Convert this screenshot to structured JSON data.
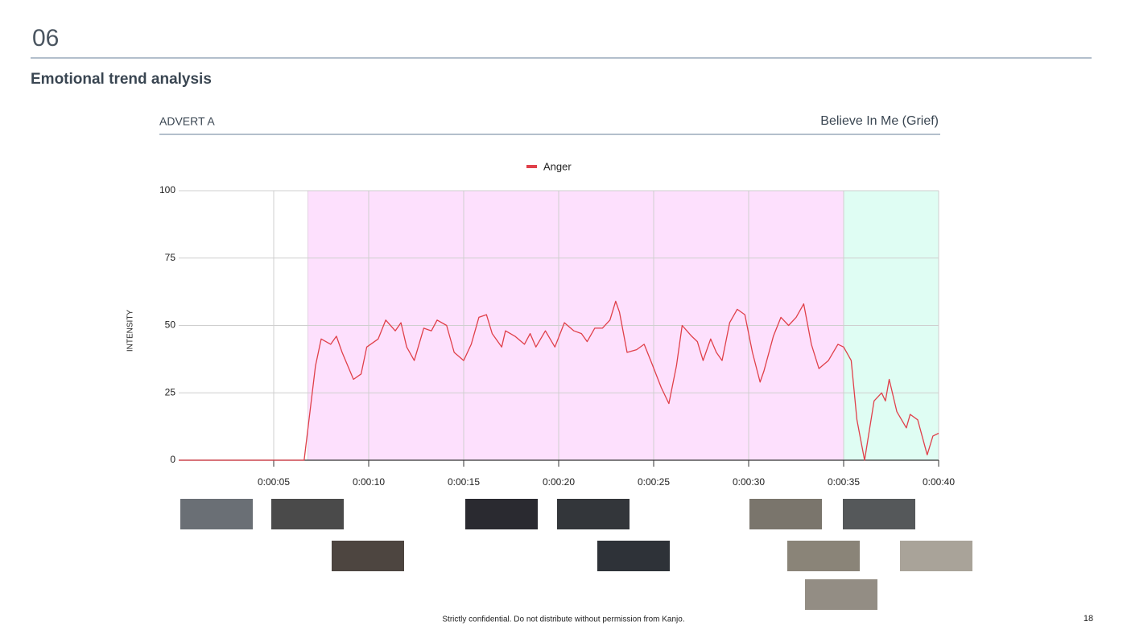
{
  "header": {
    "number": "06",
    "title": "Emotional trend analysis"
  },
  "panel": {
    "left_label": "ADVERT A",
    "right_label": "Believe In Me (Grief)"
  },
  "chart_data": {
    "type": "line",
    "y_label": "INTENSITY",
    "xlim": [
      0,
      40
    ],
    "ylim": [
      0,
      100
    ],
    "yticks": [
      0,
      25,
      50,
      75,
      100
    ],
    "xticks": [
      {
        "value": 5,
        "label": "0:00:05"
      },
      {
        "value": 10,
        "label": "0:00:10"
      },
      {
        "value": 15,
        "label": "0:00:15"
      },
      {
        "value": 20,
        "label": "0:00:20"
      },
      {
        "value": 25,
        "label": "0:00:25"
      },
      {
        "value": 30,
        "label": "0:00:30"
      },
      {
        "value": 35,
        "label": "0:00:35"
      },
      {
        "value": 40,
        "label": "0:00:40"
      }
    ],
    "grid": true,
    "bands": [
      {
        "from": 6.8,
        "to": 35,
        "color": "#fde0fd"
      },
      {
        "from": 35,
        "to": 40,
        "color": "#dffdf3"
      }
    ],
    "x": [
      0,
      2,
      4,
      6,
      6.6,
      7.2,
      7.5,
      8.0,
      8.3,
      8.6,
      9.2,
      9.6,
      9.9,
      10.5,
      10.9,
      11.4,
      11.7,
      12.0,
      12.4,
      12.9,
      13.3,
      13.6,
      14.1,
      14.5,
      15.0,
      15.4,
      15.8,
      16.2,
      16.5,
      17.0,
      17.2,
      17.7,
      18.2,
      18.5,
      18.8,
      19.3,
      19.8,
      20.3,
      20.8,
      21.2,
      21.5,
      21.9,
      22.3,
      22.7,
      23.0,
      23.2,
      23.6,
      24.1,
      24.5,
      24.9,
      25.4,
      25.8,
      26.2,
      26.5,
      27.0,
      27.3,
      27.6,
      28.0,
      28.3,
      28.6,
      29.0,
      29.4,
      29.8,
      30.2,
      30.6,
      30.8,
      31.3,
      31.7,
      32.1,
      32.5,
      32.9,
      33.3,
      33.7,
      34.2,
      34.7,
      35.0,
      35.4,
      35.7,
      36.1,
      36.6,
      37.0,
      37.2,
      37.4,
      37.8,
      38.3,
      38.5,
      38.9,
      39.4,
      39.7,
      40.0
    ],
    "series": [
      {
        "name": "Anger",
        "color": "#e0404a",
        "values": [
          0,
          0,
          0,
          0,
          0,
          35,
          45,
          43,
          46,
          40,
          30,
          32,
          42,
          45,
          52,
          48,
          51,
          42,
          37,
          49,
          48,
          52,
          50,
          40,
          37,
          43,
          53,
          54,
          47,
          42,
          48,
          46,
          43,
          47,
          42,
          48,
          42,
          51,
          48,
          47,
          44,
          49,
          49,
          52,
          59,
          55,
          40,
          41,
          43,
          36,
          27,
          21,
          35,
          50,
          46,
          44,
          37,
          45,
          40,
          37,
          51,
          56,
          54,
          40,
          29,
          33,
          46,
          53,
          50,
          53,
          58,
          43,
          34,
          37,
          43,
          42,
          37,
          15,
          0,
          22,
          25,
          22,
          30,
          18,
          12,
          17,
          15,
          2,
          9,
          10
        ]
      }
    ]
  },
  "footer": {
    "note": "Strictly confidential. Do not distribute without permission from Kanjo.",
    "page": "18"
  }
}
